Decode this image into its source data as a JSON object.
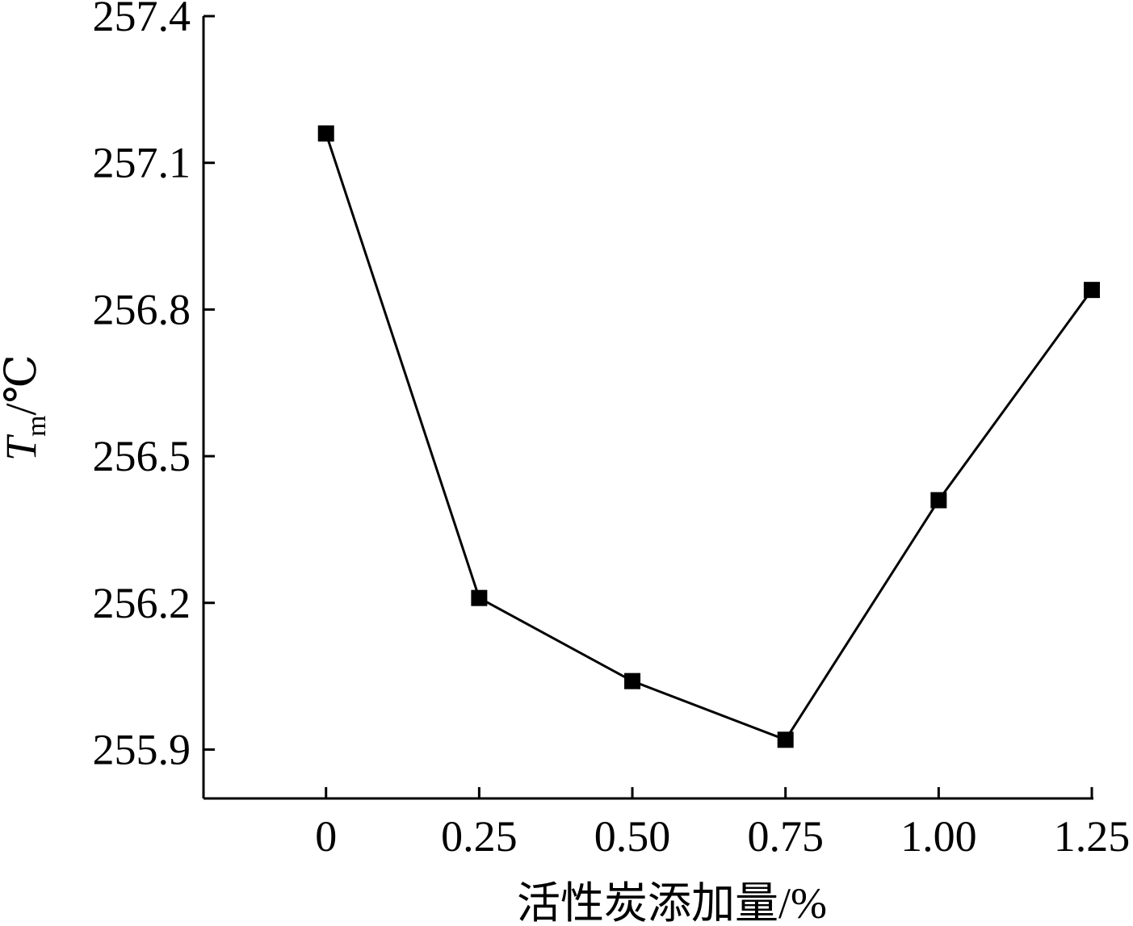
{
  "chart_data": {
    "type": "line",
    "x_tick_labels": [
      "0",
      "0.25",
      "0.50",
      "0.75",
      "1.00",
      "1.25"
    ],
    "y_tick_labels": [
      "255.9",
      "256.2",
      "256.5",
      "256.8",
      "257.1",
      "257.4"
    ],
    "xlim": [
      -0.2,
      1.25
    ],
    "ylim": [
      255.8,
      257.4
    ],
    "xlabel": "活性炭添加量/%",
    "ylabel": {
      "symbol": "T",
      "subscript": "m",
      "unit": "/℃"
    },
    "grid": false,
    "marker": "square",
    "color": "#000000",
    "series": [
      {
        "x": [
          0,
          0.25,
          0.5,
          0.75,
          1.0,
          1.25
        ],
        "y": [
          257.16,
          256.21,
          256.04,
          255.92,
          256.41,
          256.84
        ]
      }
    ]
  }
}
